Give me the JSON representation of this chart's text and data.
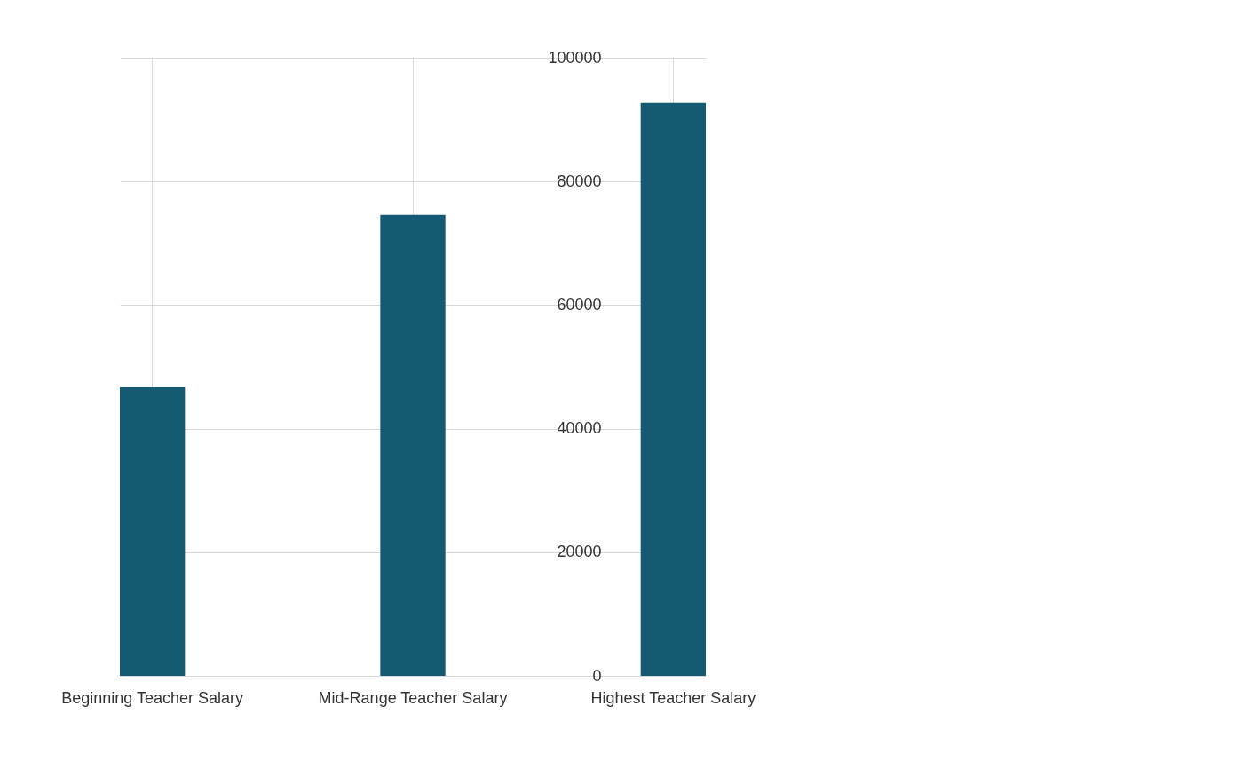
{
  "chart_data": {
    "type": "bar",
    "categories": [
      "Beginning Teacher Salary",
      "Mid-Range Teacher Salary",
      "Highest Teacher Salary"
    ],
    "values": [
      46700,
      74600,
      92700
    ],
    "color": "#135a72",
    "ylim": [
      0,
      100000
    ],
    "yticks": [
      0,
      20000,
      40000,
      60000,
      80000,
      100000
    ],
    "grid": true
  }
}
